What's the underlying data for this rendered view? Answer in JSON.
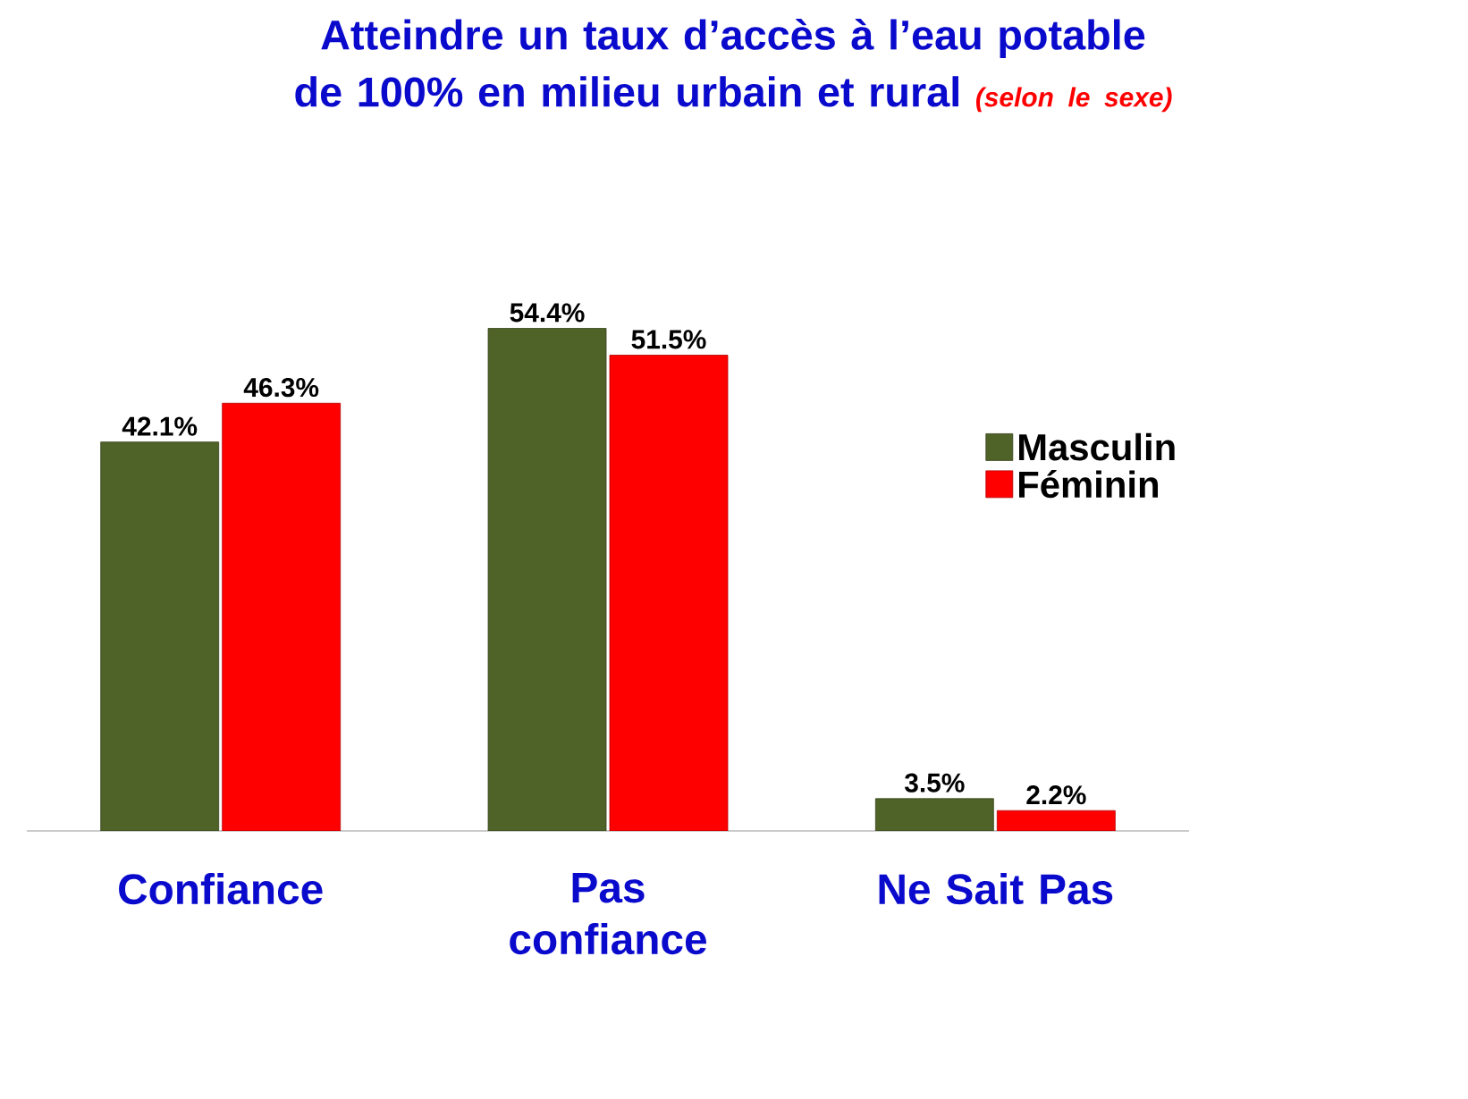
{
  "chart_data": {
    "type": "bar",
    "title": "Atteindre un taux d’accès à l’eau potable de 100% en milieu urbain et rural",
    "subtitle": "(selon le sexe)",
    "categories": [
      "Confiance",
      "Pas confiance",
      "Ne Sait Pas"
    ],
    "series": [
      {
        "name": "Masculin",
        "color": "#4f6228",
        "values": [
          42.1,
          54.4,
          3.5
        ],
        "value_labels": [
          "42.1%",
          "54.4%",
          "3.5%"
        ]
      },
      {
        "name": "Féminin",
        "color": "#ff0000",
        "values": [
          46.3,
          51.5,
          2.2
        ],
        "value_labels": [
          "46.3%",
          "51.5%",
          "2.2%"
        ]
      }
    ],
    "legend": "right"
  }
}
